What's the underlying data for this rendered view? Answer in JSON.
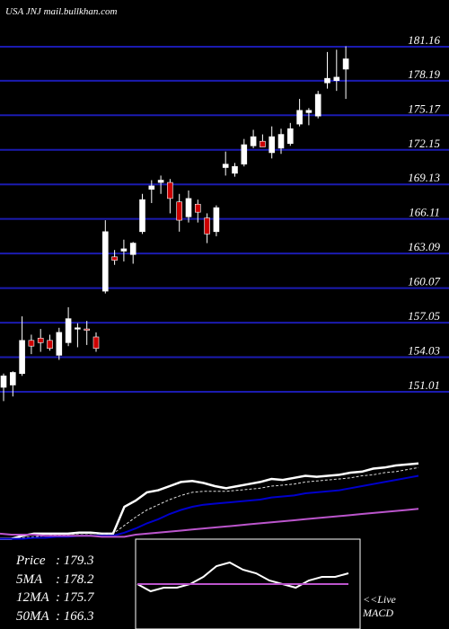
{
  "header": {
    "title": "USA JNJ mail.bullkhan.com"
  },
  "chart_data": [
    {
      "type": "candlestick",
      "title": "USA JNJ mail.bullkhan.com",
      "price_ticks": [
        181.16,
        178.19,
        175.17,
        172.15,
        169.13,
        166.11,
        163.09,
        160.07,
        157.05,
        154.03,
        151.01
      ],
      "ylim": [
        150.0,
        182.5
      ],
      "grid": true,
      "up_color": "#ffffff",
      "down_color": "#cc0000",
      "candles": [
        {
          "o": 151.4,
          "h": 152.6,
          "l": 150.2,
          "c": 152.4
        },
        {
          "o": 151.6,
          "h": 152.8,
          "l": 150.6,
          "c": 152.7
        },
        {
          "o": 152.6,
          "h": 157.6,
          "l": 152.4,
          "c": 155.5
        },
        {
          "o": 155.5,
          "h": 156.0,
          "l": 154.3,
          "c": 155.0
        },
        {
          "o": 155.7,
          "h": 156.5,
          "l": 154.5,
          "c": 155.3
        },
        {
          "o": 155.5,
          "h": 156.0,
          "l": 154.6,
          "c": 154.8
        },
        {
          "o": 154.2,
          "h": 156.6,
          "l": 153.8,
          "c": 156.2
        },
        {
          "o": 155.3,
          "h": 158.4,
          "l": 155.0,
          "c": 157.4
        },
        {
          "o": 156.5,
          "h": 157.0,
          "l": 154.9,
          "c": 156.6
        },
        {
          "o": 156.5,
          "h": 157.2,
          "l": 155.1,
          "c": 156.4
        },
        {
          "o": 155.8,
          "h": 156.2,
          "l": 154.5,
          "c": 154.8
        },
        {
          "o": 159.8,
          "h": 166.0,
          "l": 159.6,
          "c": 165.0
        },
        {
          "o": 162.8,
          "h": 163.4,
          "l": 162.1,
          "c": 162.5
        },
        {
          "o": 163.3,
          "h": 164.3,
          "l": 162.4,
          "c": 163.5
        },
        {
          "o": 163.0,
          "h": 164.1,
          "l": 162.2,
          "c": 164.0
        },
        {
          "o": 165.0,
          "h": 168.3,
          "l": 164.8,
          "c": 167.8
        },
        {
          "o": 168.7,
          "h": 169.5,
          "l": 167.5,
          "c": 169.0
        },
        {
          "o": 169.3,
          "h": 169.9,
          "l": 168.3,
          "c": 169.5
        },
        {
          "o": 169.3,
          "h": 169.6,
          "l": 166.6,
          "c": 167.9
        },
        {
          "o": 167.6,
          "h": 168.3,
          "l": 165.0,
          "c": 166.0
        },
        {
          "o": 166.3,
          "h": 168.6,
          "l": 165.8,
          "c": 167.9
        },
        {
          "o": 167.4,
          "h": 167.8,
          "l": 165.8,
          "c": 166.7
        },
        {
          "o": 166.2,
          "h": 166.6,
          "l": 164.0,
          "c": 164.8
        },
        {
          "o": 165.0,
          "h": 167.3,
          "l": 164.6,
          "c": 167.1
        },
        {
          "o": 170.6,
          "h": 172.0,
          "l": 169.9,
          "c": 170.9
        },
        {
          "o": 170.1,
          "h": 171.0,
          "l": 169.8,
          "c": 170.7
        },
        {
          "o": 170.9,
          "h": 173.1,
          "l": 170.7,
          "c": 172.6
        },
        {
          "o": 172.5,
          "h": 173.9,
          "l": 172.3,
          "c": 173.3
        },
        {
          "o": 172.9,
          "h": 173.5,
          "l": 172.5,
          "c": 172.4
        },
        {
          "o": 171.9,
          "h": 174.2,
          "l": 171.4,
          "c": 173.3
        },
        {
          "o": 172.3,
          "h": 174.0,
          "l": 171.8,
          "c": 173.5
        },
        {
          "o": 172.7,
          "h": 174.5,
          "l": 172.5,
          "c": 174.0
        },
        {
          "o": 174.4,
          "h": 176.6,
          "l": 174.2,
          "c": 175.6
        },
        {
          "o": 175.4,
          "h": 175.8,
          "l": 174.3,
          "c": 175.6
        },
        {
          "o": 175.1,
          "h": 177.3,
          "l": 174.9,
          "c": 177.0
        },
        {
          "o": 178.0,
          "h": 180.7,
          "l": 177.5,
          "c": 178.4
        },
        {
          "o": 178.2,
          "h": 180.9,
          "l": 177.3,
          "c": 178.5
        },
        {
          "o": 179.2,
          "h": 181.2,
          "l": 176.6,
          "c": 180.1
        }
      ]
    },
    {
      "type": "line",
      "subplot": "moving averages",
      "ylim": [
        0,
        100
      ],
      "series": [
        {
          "color": "#ffffff",
          "values": [
            9,
            9,
            12,
            14,
            14,
            14,
            14,
            15,
            15,
            14,
            14,
            40,
            46,
            54,
            56,
            60,
            64,
            65,
            63,
            60,
            58,
            60,
            62,
            64,
            67,
            66,
            68,
            70,
            69,
            70,
            71,
            73,
            74,
            77,
            78,
            80,
            81,
            82
          ]
        },
        {
          "color": "#dddddd",
          "values": [
            9,
            9,
            10,
            11,
            12,
            13,
            13,
            14,
            14,
            14,
            14,
            22,
            30,
            37,
            42,
            47,
            51,
            54,
            55,
            55,
            55,
            56,
            57,
            58,
            60,
            61,
            62,
            64,
            65,
            66,
            67,
            68,
            70,
            71,
            73,
            74,
            76,
            78
          ]
        },
        {
          "color": "#0000cc",
          "values": [
            9,
            9,
            9,
            10,
            10,
            11,
            11,
            12,
            12,
            12,
            12,
            15,
            19,
            24,
            28,
            33,
            37,
            40,
            42,
            43,
            44,
            45,
            46,
            47,
            49,
            50,
            51,
            53,
            54,
            55,
            56,
            58,
            60,
            62,
            64,
            66,
            68,
            70
          ]
        },
        {
          "color": "#bb55cc",
          "values": [
            14,
            13,
            13,
            13,
            12,
            12,
            12,
            12,
            12,
            11,
            11,
            11,
            13,
            14,
            15,
            16,
            17,
            18,
            19,
            20,
            21,
            22,
            23,
            24,
            25,
            26,
            27,
            28,
            29,
            30,
            31,
            32,
            33,
            34,
            35,
            36,
            37,
            38
          ]
        }
      ]
    },
    {
      "type": "line",
      "subplot": "MACD",
      "ylim": [
        -10,
        10
      ],
      "series": [
        {
          "color": "#ffffff",
          "values": [
            0,
            -2,
            -1,
            -1,
            0,
            2,
            5,
            6,
            4,
            3,
            1,
            0,
            -1,
            1,
            2,
            2,
            3
          ]
        },
        {
          "color": "#bb55cc",
          "values": [
            0,
            0,
            0,
            0,
            0,
            0,
            0,
            0,
            0,
            0,
            0,
            0,
            0,
            0,
            0,
            0,
            0
          ]
        }
      ]
    }
  ],
  "info": {
    "rows": [
      {
        "name": "Price",
        "value": ": 179.3"
      },
      {
        "name": "5MA",
        "value": ": 178.2"
      },
      {
        "name": "12MA",
        "value": ": 175.7"
      },
      {
        "name": "50MA",
        "value": ": 166.3"
      }
    ]
  },
  "macd_note": {
    "line1": "<<Live",
    "line2": "MACD"
  }
}
